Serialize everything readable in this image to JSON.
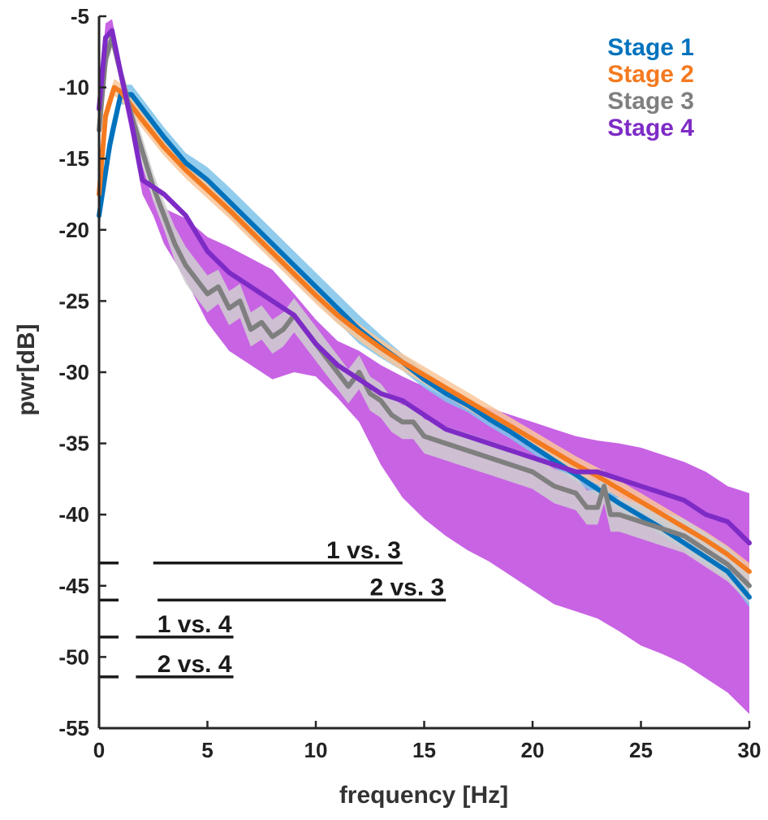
{
  "chart_data": {
    "type": "line",
    "title": "",
    "xlabel": "frequency [Hz]",
    "ylabel": "pwr[dB]",
    "xlim": [
      0,
      30
    ],
    "ylim": [
      -55,
      -5
    ],
    "xticks": [
      0,
      5,
      10,
      15,
      20,
      25,
      30
    ],
    "yticks": [
      -5,
      -10,
      -15,
      -20,
      -25,
      -30,
      -35,
      -40,
      -45,
      -50,
      -55
    ],
    "grid": false,
    "legend_position": "top-right",
    "series": [
      {
        "name": "Stage 1",
        "color": "#0072BD",
        "band_color": "#7FC3EA",
        "x": [
          0,
          0.5,
          1.0,
          1.5,
          2,
          3,
          4,
          5,
          6,
          7,
          8,
          9,
          10,
          11,
          12,
          13,
          14,
          15,
          16,
          17,
          18,
          19,
          20,
          21,
          22,
          23,
          24,
          25,
          26,
          27,
          28,
          29,
          30
        ],
        "y": [
          -19,
          -14,
          -10.5,
          -10.5,
          -11.5,
          -13.5,
          -15.3,
          -16.5,
          -18,
          -19.5,
          -21,
          -22.5,
          -24,
          -25.5,
          -27,
          -28.2,
          -29.3,
          -30.5,
          -31.5,
          -32.3,
          -33.3,
          -34.2,
          -35.2,
          -36.2,
          -37.2,
          -38.2,
          -39.2,
          -40.1,
          -41,
          -42,
          -43,
          -44,
          -45.8
        ],
        "band_upper": [
          -18,
          -13,
          -9.8,
          -9.8,
          -10.8,
          -12.8,
          -14.6,
          -15.6,
          -17,
          -18.5,
          -20,
          -21.5,
          -23,
          -24.5,
          -26,
          -27.4,
          -28.7,
          -29.9,
          -30.9,
          -31.8,
          -32.8,
          -33.7,
          -34.7,
          -35.7,
          -36.7,
          -37.7,
          -38.7,
          -39.6,
          -40.5,
          -41.5,
          -42.5,
          -43.5,
          -45
        ],
        "band_lower": [
          -20,
          -15,
          -11.2,
          -11.2,
          -12.2,
          -14.2,
          -16,
          -17.4,
          -19,
          -20.5,
          -22,
          -23.5,
          -25,
          -26.5,
          -28,
          -29,
          -29.9,
          -31.1,
          -32.1,
          -32.8,
          -33.8,
          -34.7,
          -35.7,
          -36.7,
          -37.7,
          -38.7,
          -39.7,
          -40.6,
          -41.5,
          -42.5,
          -43.5,
          -44.5,
          -46.5
        ]
      },
      {
        "name": "Stage 2",
        "color": "#F47A20",
        "band_color": "#F9C79A",
        "x": [
          0,
          0.3,
          0.7,
          1.0,
          1.5,
          2,
          3,
          4,
          5,
          6,
          7,
          8,
          9,
          10,
          11,
          12,
          13,
          14,
          15,
          16,
          17,
          18,
          19,
          20,
          21,
          22,
          23,
          24,
          25,
          26,
          27,
          28,
          29,
          30
        ],
        "y": [
          -17.5,
          -12,
          -10,
          -10.3,
          -11.3,
          -12.3,
          -14.2,
          -15.8,
          -17.2,
          -18.6,
          -20.1,
          -21.6,
          -23.1,
          -24.6,
          -26,
          -27.2,
          -28.3,
          -29.3,
          -30.2,
          -31.1,
          -32,
          -32.9,
          -33.8,
          -34.7,
          -35.6,
          -36.5,
          -37.3,
          -38.2,
          -39.1,
          -40,
          -40.9,
          -41.8,
          -42.8,
          -44
        ],
        "band_upper": [
          -16.5,
          -11.3,
          -9.4,
          -9.7,
          -10.7,
          -11.7,
          -13.6,
          -15.2,
          -16.6,
          -18,
          -19.5,
          -21,
          -22.5,
          -24,
          -25.4,
          -26.6,
          -27.7,
          -28.7,
          -29.6,
          -30.5,
          -31.4,
          -32.3,
          -33.2,
          -34.1,
          -35,
          -35.9,
          -36.7,
          -37.6,
          -38.5,
          -39.4,
          -40.3,
          -41.2,
          -42.2,
          -43.4
        ],
        "band_lower": [
          -18.5,
          -12.7,
          -10.6,
          -10.9,
          -11.9,
          -12.9,
          -14.8,
          -16.4,
          -17.8,
          -19.2,
          -20.7,
          -22.2,
          -23.7,
          -25.2,
          -26.6,
          -27.8,
          -28.9,
          -29.9,
          -30.8,
          -31.7,
          -32.6,
          -33.5,
          -34.4,
          -35.3,
          -36.2,
          -37.1,
          -37.9,
          -38.8,
          -39.7,
          -40.6,
          -41.5,
          -42.4,
          -43.4,
          -44.6
        ]
      },
      {
        "name": "Stage 3",
        "color": "#7F7F7F",
        "band_color": "#CFCFCF",
        "x": [
          0,
          0.3,
          0.6,
          1.0,
          1.5,
          2,
          2.5,
          3,
          3.5,
          4,
          4.5,
          5,
          5.5,
          6,
          6.5,
          7,
          7.5,
          8,
          8.5,
          9,
          9.5,
          10,
          10.5,
          11,
          11.5,
          12,
          12.5,
          13,
          13.5,
          14,
          14.5,
          15,
          16,
          17,
          18,
          19,
          20,
          21,
          22,
          22.5,
          23,
          23.3,
          23.6,
          24,
          25,
          26,
          27,
          28,
          29,
          30
        ],
        "y": [
          -13,
          -8,
          -6.5,
          -9,
          -12,
          -14.5,
          -17,
          -19,
          -21,
          -22.5,
          -23.5,
          -24.5,
          -24,
          -25.5,
          -25,
          -27,
          -26.5,
          -27.5,
          -27,
          -26,
          -27,
          -28,
          -29,
          -30,
          -31,
          -30,
          -31.5,
          -32,
          -33,
          -33.5,
          -33.5,
          -34.5,
          -35,
          -35.5,
          -36,
          -36.5,
          -37,
          -38,
          -38.5,
          -39.5,
          -39.5,
          -38,
          -40,
          -40,
          -40.5,
          -41,
          -41.5,
          -42.5,
          -43.5,
          -45
        ],
        "band_upper": [
          -12,
          -7,
          -5.8,
          -8.2,
          -11.2,
          -13.5,
          -16,
          -18,
          -19.8,
          -21.2,
          -22.2,
          -23.2,
          -22.8,
          -24.3,
          -23.8,
          -25.8,
          -25.3,
          -26.3,
          -25.8,
          -24.8,
          -25.8,
          -26.8,
          -27.8,
          -28.8,
          -29.8,
          -28.8,
          -30.3,
          -30.8,
          -31.8,
          -32.3,
          -32.3,
          -33.3,
          -33.8,
          -34.3,
          -34.8,
          -35.3,
          -35.8,
          -36.8,
          -37.3,
          -38.3,
          -38.3,
          -36.8,
          -38.8,
          -38.8,
          -39.3,
          -39.8,
          -40.3,
          -41.3,
          -42.3,
          -43.8
        ],
        "band_lower": [
          -14,
          -9,
          -7.2,
          -9.8,
          -12.8,
          -15.5,
          -18,
          -20,
          -22.2,
          -23.8,
          -24.8,
          -25.8,
          -25.2,
          -26.7,
          -26.2,
          -28.2,
          -27.7,
          -28.7,
          -28.2,
          -27.2,
          -28.2,
          -29.2,
          -30.2,
          -31.2,
          -32.2,
          -31.2,
          -32.7,
          -33.2,
          -34.2,
          -34.7,
          -34.7,
          -35.7,
          -36.2,
          -36.7,
          -37.2,
          -37.7,
          -38.2,
          -39.2,
          -39.7,
          -40.7,
          -40.7,
          -39.2,
          -41.2,
          -41.2,
          -41.7,
          -42.2,
          -42.7,
          -43.7,
          -44.7,
          -46.2
        ]
      },
      {
        "name": "Stage 4",
        "color": "#7E2BC6",
        "band_color": "#C55BE3",
        "x": [
          0,
          0.3,
          0.6,
          1.0,
          1.5,
          2,
          2.5,
          3,
          4,
          5,
          6,
          7,
          8,
          9,
          10,
          11,
          12,
          13,
          14,
          15,
          16,
          17,
          18,
          19,
          20,
          21,
          22,
          23,
          24,
          25,
          26,
          27,
          28,
          29,
          30
        ],
        "y": [
          -11.5,
          -6.5,
          -6,
          -9,
          -12.5,
          -16.5,
          -17,
          -17.5,
          -19,
          -21.5,
          -23,
          -24,
          -25,
          -26,
          -28,
          -29.5,
          -30.5,
          -31.5,
          -32,
          -33,
          -34,
          -34.5,
          -35,
          -35.5,
          -36,
          -36.5,
          -37,
          -37,
          -37.5,
          -38,
          -38.5,
          -39,
          -40,
          -40.5,
          -42
        ],
        "band_upper": [
          -10.5,
          -5.5,
          -5.2,
          -8.2,
          -11.5,
          -15.5,
          -17.8,
          -18.5,
          -19.2,
          -20.5,
          -21.2,
          -22,
          -22.8,
          -24.5,
          -26.3,
          -27.8,
          -28.5,
          -29.5,
          -30.3,
          -31,
          -31.8,
          -32.3,
          -32.5,
          -33,
          -33.5,
          -34,
          -34.5,
          -34.8,
          -35,
          -35.3,
          -35.8,
          -36.3,
          -37,
          -38,
          -38.5
        ],
        "band_lower": [
          -12.5,
          -7.5,
          -7,
          -9.8,
          -13.5,
          -17.5,
          -19,
          -21,
          -23.5,
          -26.5,
          -28.5,
          -29.5,
          -30.5,
          -30,
          -30.3,
          -31.8,
          -33.5,
          -36.5,
          -38.8,
          -40.3,
          -41.5,
          -42.5,
          -43.3,
          -44.3,
          -45.3,
          -46.3,
          -46.8,
          -47.3,
          -48.2,
          -49.2,
          -49.8,
          -50.5,
          -51.5,
          -52.5,
          -54
        ]
      }
    ],
    "significance_bars": [
      {
        "label": "1 vs. 3",
        "x_start": 2.5,
        "x_end": 14,
        "y": -43.4
      },
      {
        "label": "2 vs. 3",
        "x_start": 2.7,
        "x_end": 16,
        "y": -46
      },
      {
        "label": "1 vs. 4",
        "x_start": 1.7,
        "x_end": 6.2,
        "y": -48.6
      },
      {
        "label": "2 vs. 4",
        "x_start": 1.7,
        "x_end": 6.2,
        "y": -51.4
      }
    ]
  }
}
